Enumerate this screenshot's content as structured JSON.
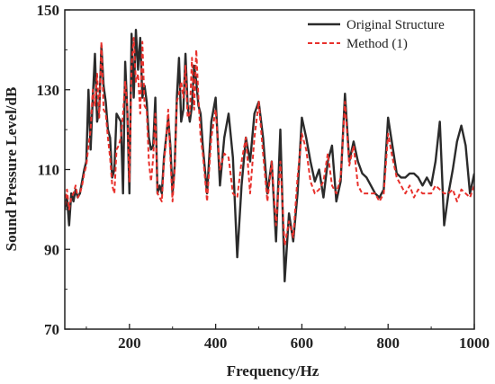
{
  "chart_data": {
    "type": "line",
    "title": "",
    "xlabel": "Frequency/Hz",
    "ylabel": "Sound Pressure Level/dB",
    "xlim": [
      50,
      1000
    ],
    "ylim": [
      70,
      150
    ],
    "xticks": [
      200,
      400,
      600,
      800,
      1000
    ],
    "yticks": [
      70,
      90,
      110,
      130,
      150
    ],
    "legend_position": "top-right",
    "grid": false,
    "series": [
      {
        "name": "Original Structure",
        "color": "#2b2b2b",
        "style": "solid",
        "x": [
          50,
          55,
          60,
          65,
          70,
          75,
          80,
          85,
          90,
          95,
          100,
          105,
          110,
          115,
          120,
          125,
          130,
          135,
          140,
          145,
          150,
          155,
          160,
          165,
          170,
          175,
          180,
          185,
          190,
          195,
          200,
          205,
          210,
          215,
          220,
          225,
          230,
          235,
          240,
          245,
          250,
          255,
          260,
          265,
          270,
          275,
          280,
          285,
          290,
          295,
          300,
          305,
          310,
          315,
          320,
          325,
          330,
          335,
          340,
          345,
          350,
          355,
          360,
          365,
          370,
          380,
          390,
          400,
          410,
          420,
          430,
          440,
          450,
          460,
          470,
          480,
          490,
          500,
          510,
          520,
          530,
          540,
          550,
          560,
          570,
          580,
          590,
          600,
          610,
          620,
          630,
          640,
          650,
          660,
          670,
          680,
          690,
          700,
          710,
          720,
          730,
          740,
          750,
          760,
          770,
          780,
          790,
          800,
          810,
          820,
          830,
          840,
          850,
          860,
          870,
          880,
          890,
          900,
          910,
          920,
          930,
          940,
          950,
          960,
          970,
          980,
          990,
          1000
        ],
        "y": [
          100,
          103,
          96,
          104,
          102,
          105,
          103,
          104,
          107,
          110,
          112,
          130,
          115,
          128,
          139,
          122,
          125,
          141,
          131,
          127,
          120,
          118,
          108,
          110,
          124,
          123,
          122,
          104,
          137,
          125,
          104,
          144,
          128,
          145,
          135,
          143,
          128,
          131,
          127,
          118,
          115,
          116,
          128,
          104,
          106,
          104,
          113,
          118,
          123,
          116,
          104,
          111,
          128,
          138,
          122,
          125,
          139,
          126,
          122,
          126,
          136,
          132,
          126,
          124,
          116,
          104,
          122,
          128,
          106,
          118,
          124,
          113,
          88,
          106,
          118,
          112,
          124,
          127,
          118,
          104,
          112,
          92,
          120,
          82,
          99,
          92,
          104,
          123,
          118,
          112,
          107,
          110,
          103,
          112,
          116,
          102,
          107,
          129,
          112,
          117,
          112,
          109,
          108,
          106,
          104,
          103,
          105,
          123,
          116,
          109,
          108,
          108,
          109,
          109,
          108,
          106,
          108,
          106,
          112,
          122,
          96,
          104,
          110,
          117,
          121,
          116,
          104,
          109
        ]
      },
      {
        "name": "Method (1)",
        "color": "#e8312c",
        "style": "dashed",
        "x": [
          50,
          55,
          60,
          65,
          70,
          75,
          80,
          85,
          90,
          95,
          100,
          105,
          110,
          115,
          120,
          125,
          130,
          135,
          140,
          145,
          150,
          155,
          160,
          165,
          170,
          175,
          180,
          185,
          190,
          195,
          200,
          205,
          210,
          215,
          220,
          225,
          230,
          235,
          240,
          245,
          250,
          255,
          260,
          265,
          270,
          275,
          280,
          285,
          290,
          295,
          300,
          305,
          310,
          315,
          320,
          325,
          330,
          335,
          340,
          345,
          350,
          355,
          360,
          365,
          370,
          380,
          390,
          400,
          410,
          420,
          430,
          440,
          450,
          460,
          470,
          480,
          490,
          500,
          510,
          520,
          530,
          540,
          550,
          560,
          570,
          580,
          590,
          600,
          610,
          620,
          630,
          640,
          650,
          660,
          670,
          680,
          690,
          700,
          710,
          720,
          730,
          740,
          750,
          760,
          770,
          780,
          790,
          800,
          810,
          820,
          830,
          840,
          850,
          860,
          870,
          880,
          890,
          900,
          910,
          920,
          930,
          940,
          950,
          960,
          970,
          980,
          990,
          1000
        ],
        "y": [
          101,
          105,
          100,
          103,
          104,
          106,
          103,
          104,
          106,
          109,
          111,
          116,
          120,
          130,
          126,
          134,
          123,
          142,
          125,
          124,
          118,
          113,
          106,
          104,
          115,
          116,
          118,
          124,
          132,
          126,
          107,
          136,
          143,
          132,
          134,
          124,
          142,
          126,
          125,
          112,
          107,
          113,
          124,
          104,
          103,
          102,
          112,
          117,
          125,
          113,
          102,
          110,
          127,
          129,
          132,
          128,
          136,
          123,
          124,
          138,
          125,
          140,
          128,
          118,
          114,
          102,
          118,
          125,
          110,
          114,
          113,
          104,
          103,
          112,
          118,
          104,
          118,
          127,
          114,
          102,
          112,
          96,
          112,
          91,
          97,
          93,
          108,
          119,
          115,
          107,
          104,
          105,
          107,
          114,
          106,
          104,
          108,
          127,
          111,
          116,
          106,
          104,
          104,
          104,
          104,
          102,
          104,
          119,
          113,
          108,
          106,
          104,
          106,
          103,
          105,
          104,
          104,
          104,
          106,
          105,
          104,
          104,
          105,
          102,
          105,
          104,
          103,
          106
        ]
      }
    ]
  }
}
